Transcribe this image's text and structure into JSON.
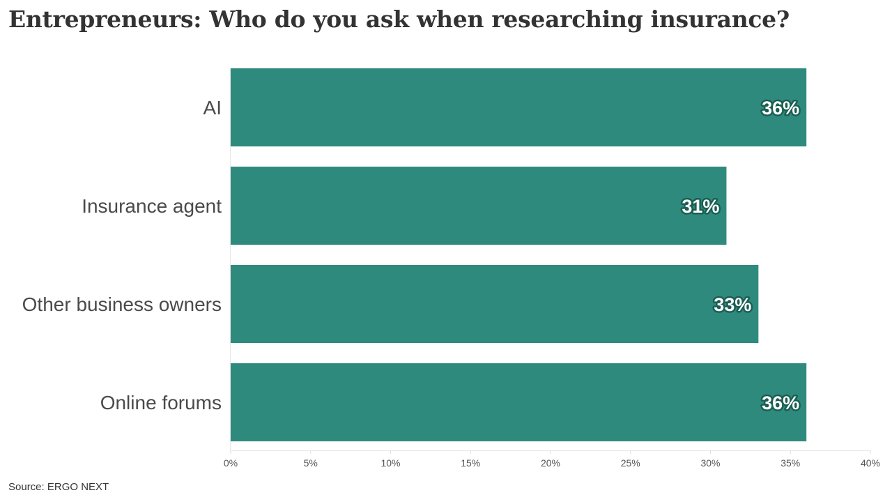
{
  "chart_data": {
    "type": "bar",
    "orientation": "horizontal",
    "title": "Entrepreneurs: Who do you ask when researching insurance?",
    "categories": [
      "AI",
      "Insurance agent",
      "Other business owners",
      "Online forums"
    ],
    "values": [
      36,
      31,
      33,
      36
    ],
    "value_labels": [
      "36%",
      "31%",
      "33%",
      "36%"
    ],
    "xlabel": "",
    "ylabel": "",
    "xlim": [
      0,
      40
    ],
    "x_ticks": [
      0,
      5,
      10,
      15,
      20,
      25,
      30,
      35,
      40
    ],
    "x_tick_labels": [
      "0%",
      "5%",
      "10%",
      "15%",
      "20%",
      "25%",
      "30%",
      "35%",
      "40%"
    ],
    "grid": false,
    "legend": "none",
    "bar_color": "#2f8a7e",
    "label_outline_color": "#1a5e52"
  },
  "source": "Source: ERGO NEXT"
}
